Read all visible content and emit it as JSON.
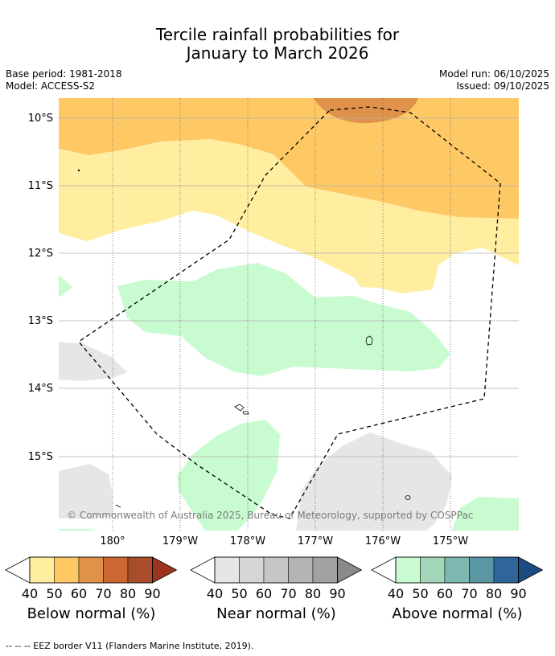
{
  "title": {
    "line1": "Tercile rainfall probabilities for",
    "line2": "January to March 2026"
  },
  "meta": {
    "base_period": "Base period: 1981-2018",
    "model": "Model: ACCESS-S2",
    "model_run": "Model run: 06/10/2025",
    "issued": "Issued: 09/10/2025"
  },
  "map": {
    "lat_labels": [
      "10°S",
      "11°S",
      "12°S",
      "13°S",
      "14°S",
      "15°S"
    ],
    "lon_labels": [
      "180°",
      "179°W",
      "178°W",
      "177°W",
      "176°W",
      "175°W"
    ],
    "copyright": "© Commonwealth of Australia 2025, Bureau of Meteorology, supported by COSPPac"
  },
  "colorbars": {
    "below": {
      "title": "Below normal (%)",
      "ticks": [
        "40",
        "50",
        "60",
        "70",
        "80",
        "90"
      ],
      "colors": [
        "#ffeda0",
        "#fec965",
        "#e0924a",
        "#cc6633",
        "#a84c2a",
        "#9c3420"
      ]
    },
    "near": {
      "title": "Near normal (%)",
      "ticks": [
        "40",
        "50",
        "60",
        "70",
        "80",
        "90"
      ],
      "colors": [
        "#e6e6e6",
        "#d6d6d6",
        "#c6c6c6",
        "#b4b4b4",
        "#a2a2a2",
        "#8a8a8a"
      ]
    },
    "above": {
      "title": "Above normal (%)",
      "ticks": [
        "40",
        "50",
        "60",
        "70",
        "80",
        "90"
      ],
      "colors": [
        "#c8fbcf",
        "#a3d6b9",
        "#7fb7b1",
        "#5a96a4",
        "#2f659b",
        "#1a4c82"
      ]
    }
  },
  "footnote": "--  --  -- EEZ border V11 (Flanders Marine Institute, 2019)."
}
